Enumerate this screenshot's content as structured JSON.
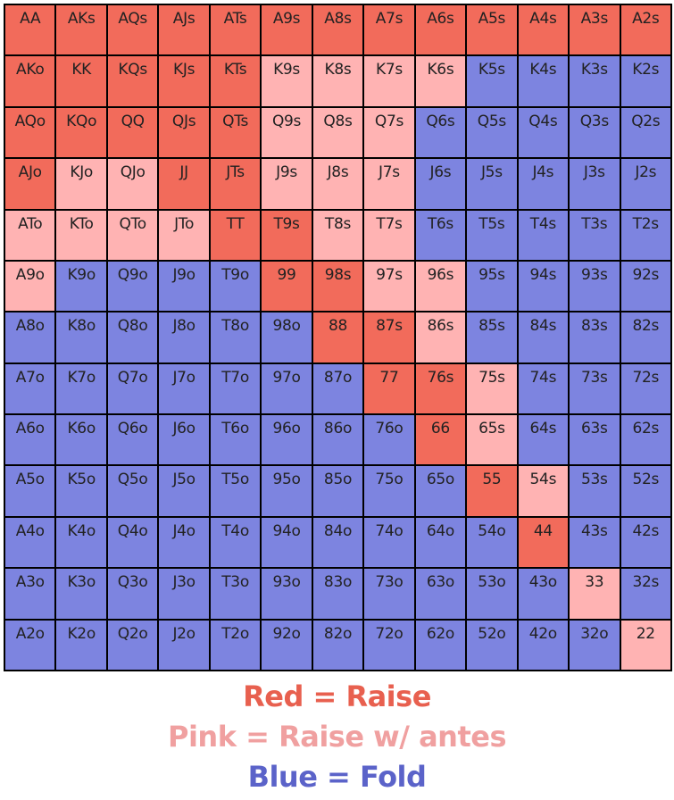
{
  "chart_data": {
    "type": "table",
    "ranks": [
      "A",
      "K",
      "Q",
      "J",
      "T",
      "9",
      "8",
      "7",
      "6",
      "5",
      "4",
      "3",
      "2"
    ],
    "colors": {
      "R": "#f26b5b",
      "P": "#ffb3b3",
      "B": "#7d84e0"
    },
    "actions": [
      "RRRRRRRRRRRRR",
      "RRRRRPPPPBBBB",
      "RRRRRPPPBBBBB",
      "RPPRRPPPBBBBB",
      "PPPPRRPPBBBBB",
      "PBBBBRRPPBBBB",
      "BBBBBBRRPBBBB",
      "BBBBBBBRRPBBB",
      "BBBBBBBBRPBBB",
      "BBBBBBBBBRPBB",
      "BBBBBBBBBBRBB",
      "BBBBBBBBBBBPB",
      "BBBBBBBBBBBBP"
    ]
  },
  "legend": {
    "red": {
      "text": "Red = Raise",
      "color": "#e8604f"
    },
    "pink": {
      "text": "Pink = Raise w/ antes",
      "color": "#f0a0a0"
    },
    "blue": {
      "text": "Blue = Fold",
      "color": "#5b63c9"
    }
  }
}
